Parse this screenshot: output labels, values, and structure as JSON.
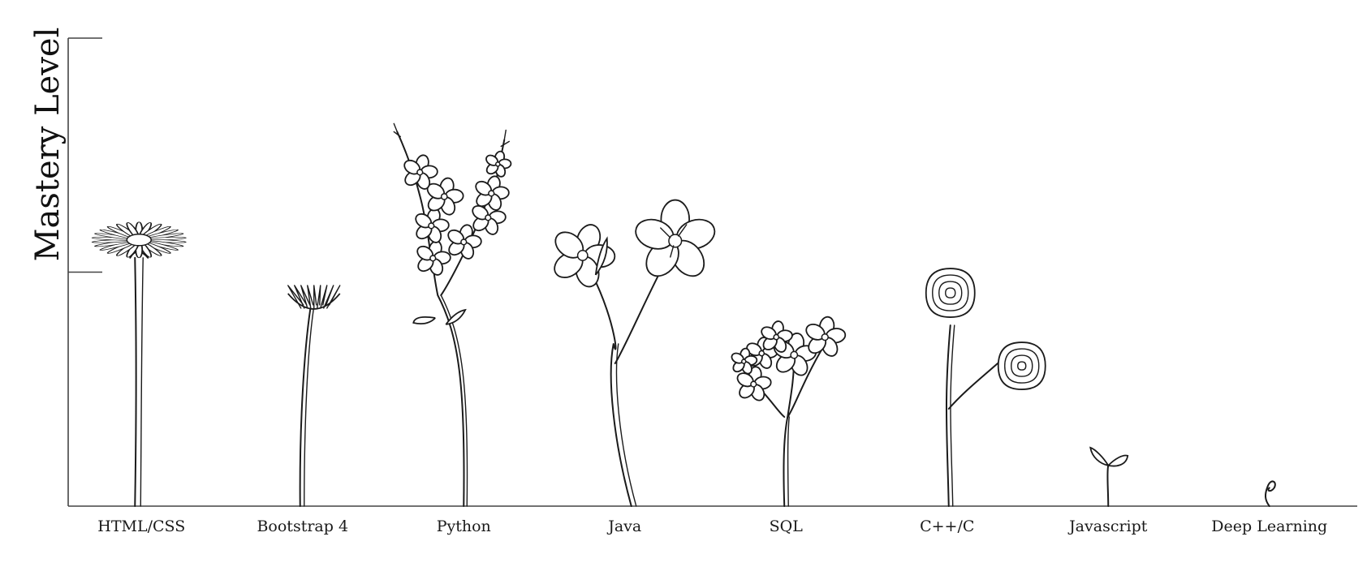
{
  "chart_data": {
    "type": "bar",
    "ylabel": "Mastery Level",
    "xlabel": "",
    "categories": [
      "HTML/CSS",
      "Bootstrap 4",
      "Python",
      "Java",
      "SQL",
      "C++/C",
      "Javascript",
      "Deep Learning"
    ],
    "values": [
      1.2,
      0.95,
      1.6,
      1.3,
      0.75,
      1.05,
      0.25,
      0.12
    ],
    "ylim": [
      0,
      2
    ],
    "yticks": [
      1,
      2
    ],
    "grid": false,
    "marks": [
      "daisy",
      "aster-bud",
      "branching-blossoms",
      "heart-petal-flowers",
      "forget-me-nots",
      "ranunculus",
      "sprout",
      "curl"
    ]
  }
}
